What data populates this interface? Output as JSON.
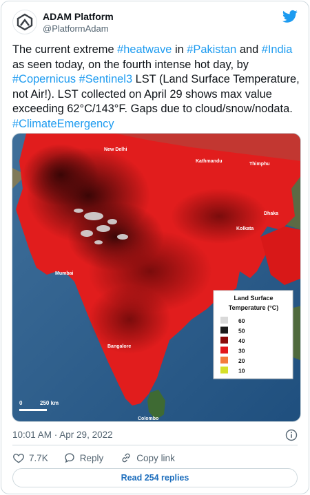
{
  "author": {
    "display_name": "ADAM Platform",
    "handle": "@PlatformAdam"
  },
  "tweet": {
    "parts": [
      {
        "text": "The current extreme ",
        "tag": false
      },
      {
        "text": "#heatwave",
        "tag": true
      },
      {
        "text": " in ",
        "tag": false
      },
      {
        "text": "#Pakistan",
        "tag": true
      },
      {
        "text": " and ",
        "tag": false
      },
      {
        "text": "#India",
        "tag": true
      },
      {
        "text": " as seen today, on the fourth intense hot day, by ",
        "tag": false
      },
      {
        "text": "#Copernicus",
        "tag": true
      },
      {
        "text": " ",
        "tag": false
      },
      {
        "text": "#Sentinel3",
        "tag": true
      },
      {
        "text": " LST (Land Surface Temperature, not Air!). LST collected on April 29 shows max value exceeding 62°C/143°F. Gaps due to cloud/snow/nodata. ",
        "tag": false
      },
      {
        "text": "#ClimateEmergency",
        "tag": true
      }
    ]
  },
  "map": {
    "cities": {
      "new_delhi": "New Delhi",
      "kathmandu": "Kathmandu",
      "thimphu": "Thimphu",
      "dhaka": "Dhaka",
      "kolkata": "Kolkata",
      "mumbai": "Mumbai",
      "bangalore": "Bangalore",
      "colombo": "Colombo"
    },
    "scale_zero": "0",
    "scale_label": "250 km",
    "legend": {
      "title_line1": "Land Surface",
      "title_line2": "Temperature (°C)",
      "items": [
        {
          "label": "60",
          "color": "#d9d9d9"
        },
        {
          "label": "50",
          "color": "#1a1a1a"
        },
        {
          "label": "40",
          "color": "#8b0a0a"
        },
        {
          "label": "30",
          "color": "#e3161b"
        },
        {
          "label": "20",
          "color": "#f47c3c"
        },
        {
          "label": "10",
          "color": "#d6e02a"
        }
      ]
    }
  },
  "meta": {
    "timestamp": "10:01 AM · Apr 29, 2022"
  },
  "actions": {
    "likes": "7.7K",
    "reply": "Reply",
    "copy_link": "Copy link"
  },
  "read_replies": "Read 254 replies",
  "colors": {
    "link": "#1d9bf0",
    "text": "#0f1419",
    "muted": "#536471",
    "heat_red": "#e3161b"
  }
}
